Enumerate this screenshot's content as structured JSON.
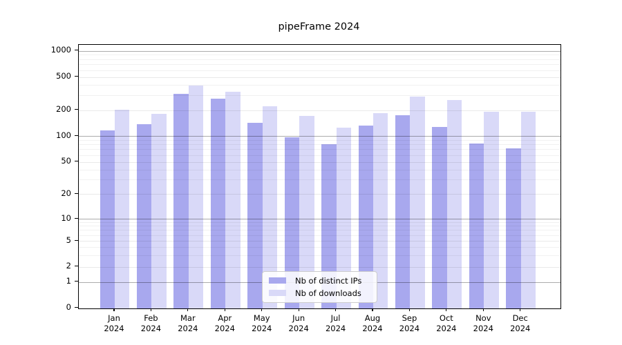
{
  "title": "pipeFrame 2024",
  "legend": {
    "items": [
      {
        "label": "Nb of distinct IPs",
        "color": "#a8a8ee"
      },
      {
        "label": "Nb of downloads",
        "color": "#d9d9f8"
      }
    ]
  },
  "chart_data": {
    "type": "bar",
    "title": "pipeFrame 2024",
    "categories": [
      "Jan 2024",
      "Feb 2024",
      "Mar 2024",
      "Apr 2024",
      "May 2024",
      "Jun 2024",
      "Jul 2024",
      "Aug 2024",
      "Sep 2024",
      "Oct 2024",
      "Nov 2024",
      "Dec 2024"
    ],
    "x_tick_line1": [
      "Jan",
      "Feb",
      "Mar",
      "Apr",
      "May",
      "Jun",
      "Jul",
      "Aug",
      "Sep",
      "Oct",
      "Nov",
      "Dec"
    ],
    "x_tick_line2": "2024",
    "series": [
      {
        "name": "Nb of distinct IPs",
        "color": "#a8a8ee",
        "values": [
          115,
          138,
          315,
          277,
          142,
          97,
          80,
          132,
          175,
          127,
          82,
          72
        ]
      },
      {
        "name": "Nb of downloads",
        "color": "#d9d9f8",
        "values": [
          203,
          182,
          398,
          330,
          222,
          170,
          125,
          185,
          292,
          263,
          193,
          193
        ]
      }
    ],
    "yscale": "asinh",
    "ylabel": "",
    "xlabel": "",
    "y_ticks": [
      0,
      1,
      2,
      5,
      10,
      20,
      50,
      100,
      200,
      500,
      1000
    ],
    "y_strong_grid_ticks": [
      1,
      10,
      100,
      1000
    ],
    "y_minor_ticks": [
      3,
      4,
      6,
      7,
      8,
      9,
      30,
      40,
      60,
      70,
      80,
      90,
      300,
      400,
      600,
      700,
      800,
      900
    ],
    "ylim": [
      0,
      1190
    ],
    "grid": true,
    "legend_position": "lower center"
  }
}
